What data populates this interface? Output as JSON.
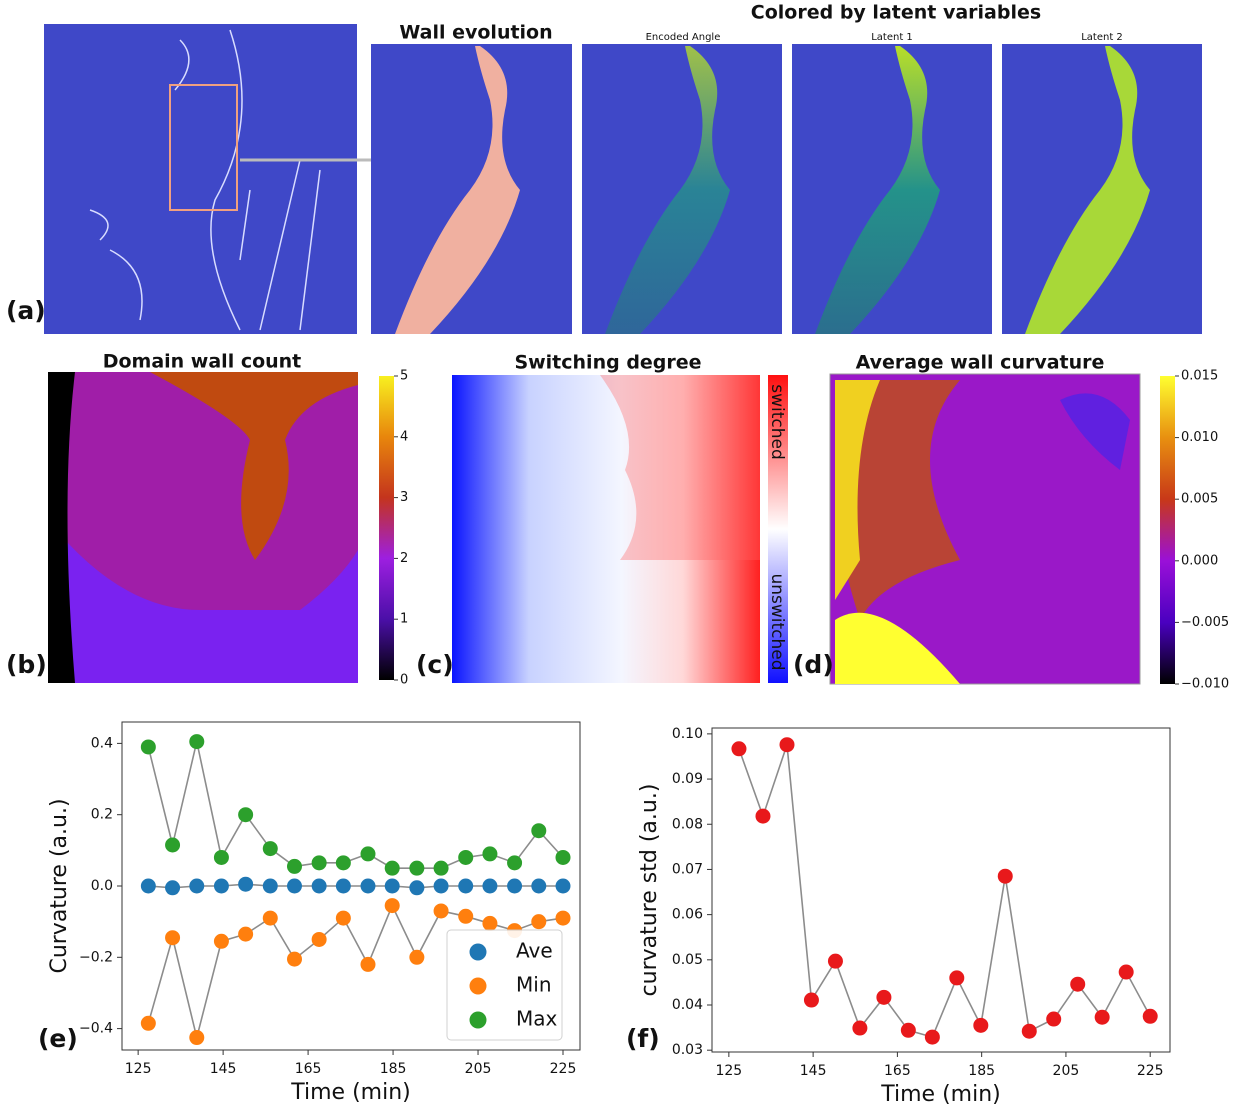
{
  "panels": {
    "a": {
      "label": "(a)",
      "title": "Wall evolution",
      "group_title": "Colored by latent variables",
      "subtitles": [
        "Encoded Angle",
        "Latent 1",
        "Latent 2"
      ]
    },
    "b": {
      "label": "(b)",
      "title": "Domain wall count",
      "clim": [
        0,
        5
      ],
      "colorbar_ticks": [
        0,
        1,
        2,
        3,
        4,
        5
      ]
    },
    "c": {
      "label": "(c)",
      "title": "Switching degree",
      "colorbar_labels": [
        "switched",
        "unswitched"
      ]
    },
    "d": {
      "label": "(d)",
      "title": "Average wall curvature",
      "clim": [
        -0.01,
        0.015
      ],
      "colorbar_ticks": [
        {
          "value": -0.01,
          "label": "−0.010"
        },
        {
          "value": -0.005,
          "label": "−0.005"
        },
        {
          "value": 0,
          "label": "0.000"
        },
        0.005,
        {
          "value": 0.01,
          "label": "0.010"
        },
        0.015
      ]
    },
    "e": {
      "label": "(e)"
    },
    "f": {
      "label": "(f)"
    }
  },
  "chart_data": [
    {
      "type": "line",
      "xlabel": "Time (min)",
      "ylabel": "Curvature (a.u.)",
      "x": [
        127.4,
        133.1,
        138.8,
        144.6,
        150.3,
        156.1,
        161.8,
        167.6,
        173.3,
        179.1,
        184.8,
        190.6,
        196.3,
        202.1,
        207.8,
        213.6,
        219.3,
        225
      ],
      "series": [
        {
          "name": "Ave",
          "color": "#1f77b4",
          "values": [
            0,
            -0.005,
            0,
            0,
            0.005,
            0,
            0,
            0,
            0,
            0,
            0,
            -0.005,
            0,
            0,
            0,
            0,
            0,
            0
          ]
        },
        {
          "name": "Min",
          "color": "#ff7f0e",
          "values": [
            -0.385,
            -0.145,
            -0.425,
            -0.155,
            -0.135,
            -0.09,
            -0.205,
            -0.15,
            -0.09,
            -0.22,
            -0.055,
            -0.2,
            -0.07,
            -0.085,
            -0.105,
            -0.125,
            -0.1,
            -0.09
          ]
        },
        {
          "name": "Max",
          "color": "#2ca02c",
          "values": [
            0.39,
            0.115,
            0.405,
            0.08,
            0.2,
            0.105,
            0.055,
            0.065,
            0.065,
            0.09,
            0.05,
            0.05,
            0.05,
            0.08,
            0.09,
            0.065,
            0.155,
            0.08
          ]
        }
      ],
      "line_color": "#8c8c8c",
      "xlim": [
        121.2,
        229
      ],
      "xticks": [
        125,
        145,
        165,
        185,
        205,
        225
      ],
      "ylim": [
        -0.46,
        0.46
      ],
      "yticks": [
        {
          "value": -0.4,
          "label": "−0.4"
        },
        {
          "value": -0.2,
          "label": "−0.2"
        },
        {
          "value": 0,
          "label": "0.0"
        },
        0.2,
        0.4
      ],
      "legend": "lower right"
    },
    {
      "type": "line",
      "xlabel": "Time (min)",
      "ylabel": "curvature std (a.u.)",
      "x": [
        127.4,
        133.1,
        138.8,
        144.6,
        150.3,
        156.1,
        161.8,
        167.6,
        173.3,
        179.1,
        184.8,
        190.6,
        196.3,
        202.1,
        207.8,
        213.6,
        219.3,
        225
      ],
      "series": [
        {
          "color": "#e8191b",
          "values": [
            0.0967,
            0.0818,
            0.0976,
            0.0411,
            0.0497,
            0.0349,
            0.0417,
            0.0344,
            0.0329,
            0.046,
            0.0355,
            0.0685,
            0.0342,
            0.0369,
            0.0446,
            0.0373,
            0.0473,
            0.0375
          ]
        }
      ],
      "line_color": "#8c8c8c",
      "xlim": [
        121,
        229.7
      ],
      "xticks": [
        125,
        145,
        165,
        185,
        205,
        225
      ],
      "ylim": [
        0.0296,
        0.1013
      ],
      "yticks": [
        0.03,
        0.04,
        0.05,
        0.06,
        0.07,
        0.08,
        0.09,
        {
          "value": 0.1,
          "label": "0.10"
        }
      ]
    }
  ]
}
